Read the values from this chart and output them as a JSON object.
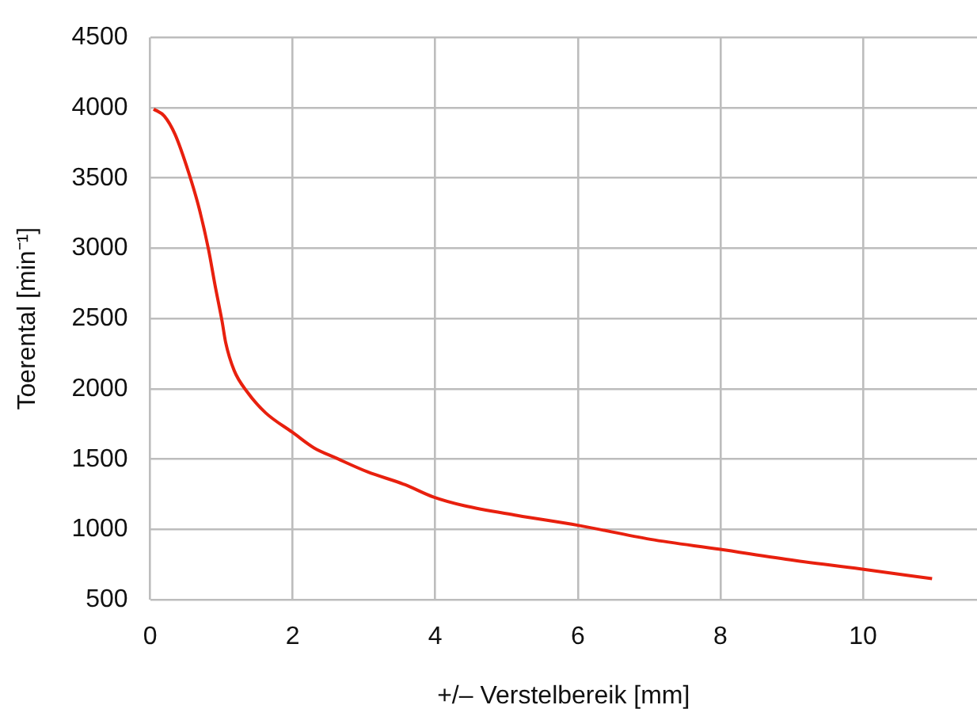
{
  "chart_data": {
    "type": "line",
    "xlabel": "+/– Verstelbereik [mm]",
    "ylabel": "Toerental [min⁻¹]",
    "x": [
      0.05,
      0.2,
      0.35,
      0.54,
      0.69,
      0.82,
      0.91,
      1.01,
      1.06,
      1.18,
      1.36,
      1.62,
      2.0,
      2.3,
      2.6,
      3.05,
      3.57,
      3.98,
      4.4,
      5.15,
      6.0,
      7.02,
      7.98,
      9.04,
      9.97,
      10.97
    ],
    "series": [
      {
        "color": "#e8200e",
        "values": [
          3990,
          3940,
          3810,
          3540,
          3280,
          2990,
          2740,
          2480,
          2330,
          2130,
          1980,
          1830,
          1690,
          1580,
          1510,
          1410,
          1320,
          1230,
          1170,
          1100,
          1030,
          930,
          860,
          780,
          720,
          650
        ]
      }
    ],
    "xlim": [
      0,
      11.6
    ],
    "xticks": [
      0,
      2,
      4,
      6,
      8,
      10
    ],
    "ylim": [
      500,
      4500
    ],
    "yticks": [
      500,
      1000,
      1500,
      2000,
      2500,
      3000,
      3500,
      4000,
      4500
    ],
    "grid": true,
    "legend": false,
    "marker": "none",
    "line_style": "solid"
  }
}
